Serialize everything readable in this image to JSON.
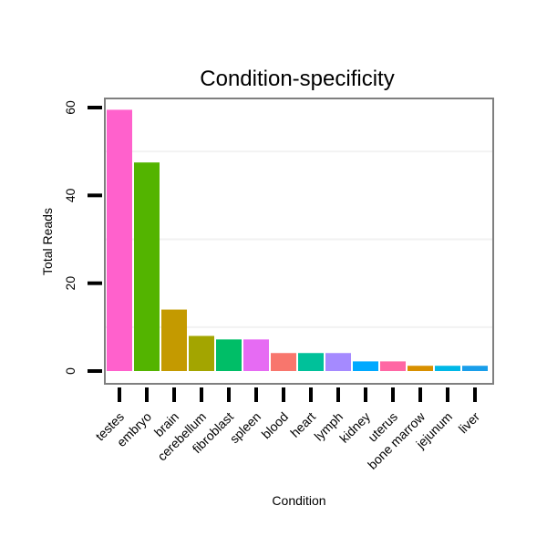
{
  "chart_data": {
    "type": "bar",
    "title": "Condition-specificity",
    "xlabel": "Condition",
    "ylabel": "Total Reads",
    "ylim": [
      0,
      60
    ],
    "yticks": [
      "0",
      "20",
      "40",
      "60"
    ],
    "grid": true,
    "legend": "none",
    "categories": [
      "testes",
      "embryo",
      "brain",
      "cerebellum",
      "fibroblast",
      "spleen",
      "blood",
      "heart",
      "lymph",
      "kidney",
      "uterus",
      "bone marrow",
      "jejunum",
      "liver"
    ],
    "values": [
      59.5,
      47.5,
      14,
      8,
      7.2,
      7.2,
      4.1,
      4.1,
      4.1,
      2.2,
      2.2,
      1.2,
      1.2,
      1.2
    ],
    "colors": [
      "#FF61CC",
      "#53B400",
      "#C49A00",
      "#A3A500",
      "#00BE67",
      "#E66BF3",
      "#F8766D",
      "#00C19A",
      "#A58AFF",
      "#00A9FF",
      "#FF67A4",
      "#D89000",
      "#00B8E7",
      "#199EEA"
    ]
  }
}
